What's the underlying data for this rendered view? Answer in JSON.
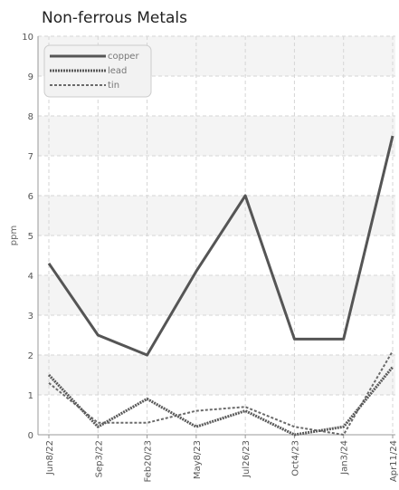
{
  "chart_data": {
    "type": "line",
    "title": "Non-ferrous Metals",
    "xlabel": "",
    "ylabel": "ppm",
    "categories": [
      "Jun8/22",
      "Sep3/22",
      "Feb20/23",
      "May8/23",
      "Jul26/23",
      "Oct4/23",
      "Jan3/24",
      "Apr11/24"
    ],
    "ylim": [
      0,
      10
    ],
    "yticks": [
      0,
      1,
      2,
      3,
      4,
      5,
      6,
      7,
      8,
      9,
      10
    ],
    "grid": true,
    "legend_position": "top-left",
    "series": [
      {
        "name": "copper",
        "values": [
          4.3,
          2.5,
          2.0,
          4.1,
          6.0,
          2.4,
          2.4,
          7.5
        ],
        "color": "#555555",
        "style": "solid"
      },
      {
        "name": "lead",
        "values": [
          1.5,
          0.2,
          0.9,
          0.2,
          0.6,
          0.0,
          0.2,
          1.7
        ],
        "color": "#5a5a5a",
        "style": "dotted"
      },
      {
        "name": "tin",
        "values": [
          1.3,
          0.3,
          0.3,
          0.6,
          0.7,
          0.2,
          0.0,
          2.1
        ],
        "color": "#6a6a6a",
        "style": "dashed"
      }
    ]
  }
}
